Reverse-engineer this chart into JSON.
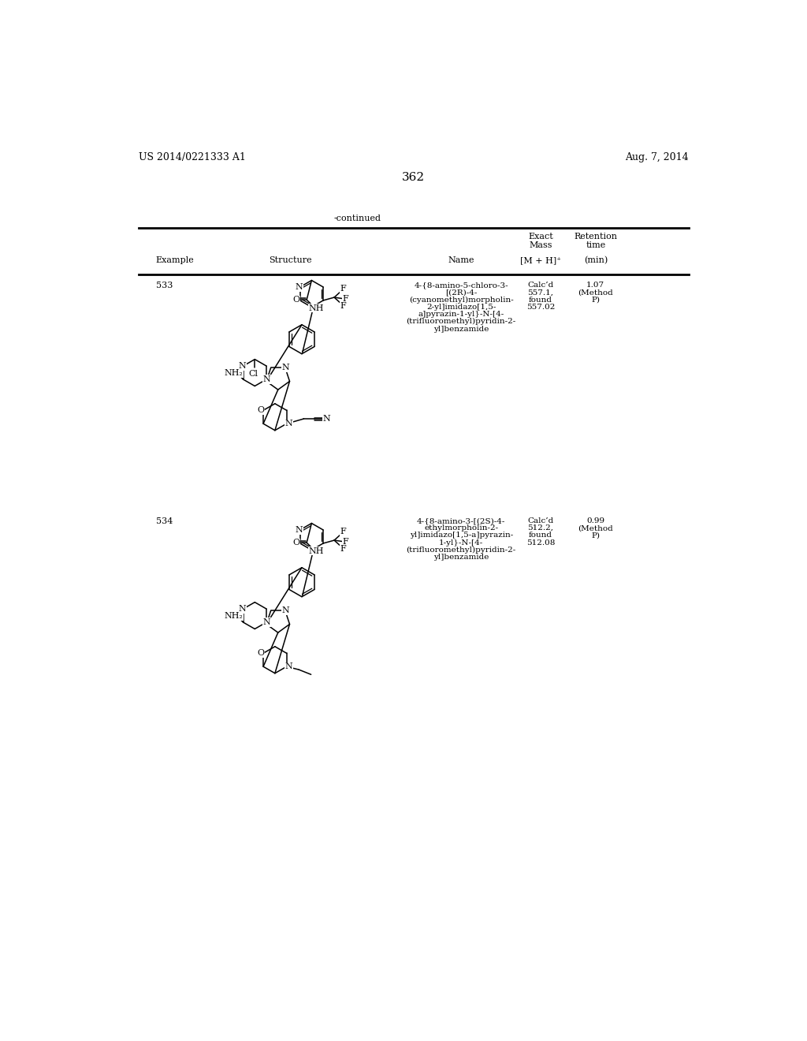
{
  "bg_color": "#ffffff",
  "header_left": "US 2014/0221333 A1",
  "header_right": "Aug. 7, 2014",
  "page_number": "362",
  "continued_text": "-continued",
  "col1_label": "Example",
  "col2_label": "Structure",
  "col3_label": "Name",
  "col4a": "Exact",
  "col4b": "Mass",
  "col4c": "[M + H]⁺",
  "col5a": "Retention",
  "col5b": "time",
  "col5c": "(min)",
  "row1_ex": "533",
  "row1_name": [
    "4-{8-amino-5-chloro-3-",
    "[(2R)-4-",
    "(cyanomethyl)morpholin-",
    "2-yl]imidazo[1,5-",
    "a]pyrazin-1-yl}-N-[4-",
    "(trifluoromethyl)pyridin-2-",
    "yl]benzamide"
  ],
  "row1_mass": [
    "Calc’d",
    "557.1,",
    "found",
    "557.02"
  ],
  "row1_ret": [
    "1.07",
    "(Method",
    "P)"
  ],
  "row2_ex": "534",
  "row2_name": [
    "4-{8-amino-3-[(2S)-4-",
    "ethylmorpholin-2-",
    "yl]imidazo[1,5-a]pyrazin-",
    "1-yl}-N-[4-",
    "(trifluoromethyl)pyridin-2-",
    "yl]benzamide"
  ],
  "row2_mass": [
    "Calc’d",
    "512.2,",
    "found",
    "512.08"
  ],
  "row2_ret": [
    "0.99",
    "(Method",
    "P)"
  ],
  "font_size_sm": 8,
  "font_size_md": 9,
  "font_size_lg": 11,
  "font_family": "DejaVu Serif"
}
